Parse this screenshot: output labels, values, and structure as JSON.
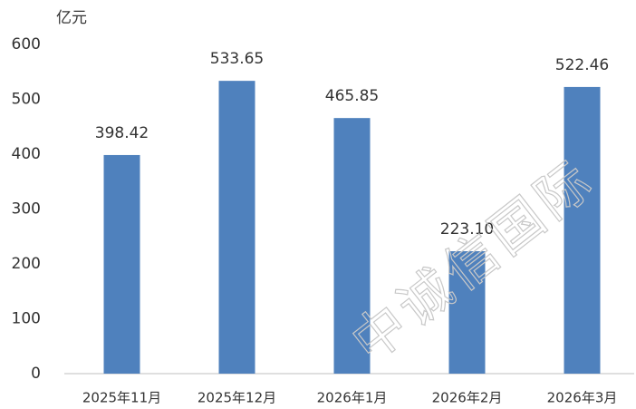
{
  "chart_data": {
    "type": "bar",
    "y_label": "亿元",
    "watermark": "中诚信国际",
    "categories": [
      "2025年11月",
      "2025年12月",
      "2026年1月",
      "2026年2月",
      "2026年3月"
    ],
    "values": [
      398.42,
      533.65,
      465.85,
      223.1,
      522.46
    ],
    "value_labels": [
      "398.42",
      "533.65",
      "465.85",
      "223.10",
      "522.46"
    ],
    "color": "#4f81bd",
    "ylim": [
      0,
      600
    ],
    "yticks": [
      0,
      100,
      200,
      300,
      400,
      500,
      600
    ],
    "grid": false
  }
}
